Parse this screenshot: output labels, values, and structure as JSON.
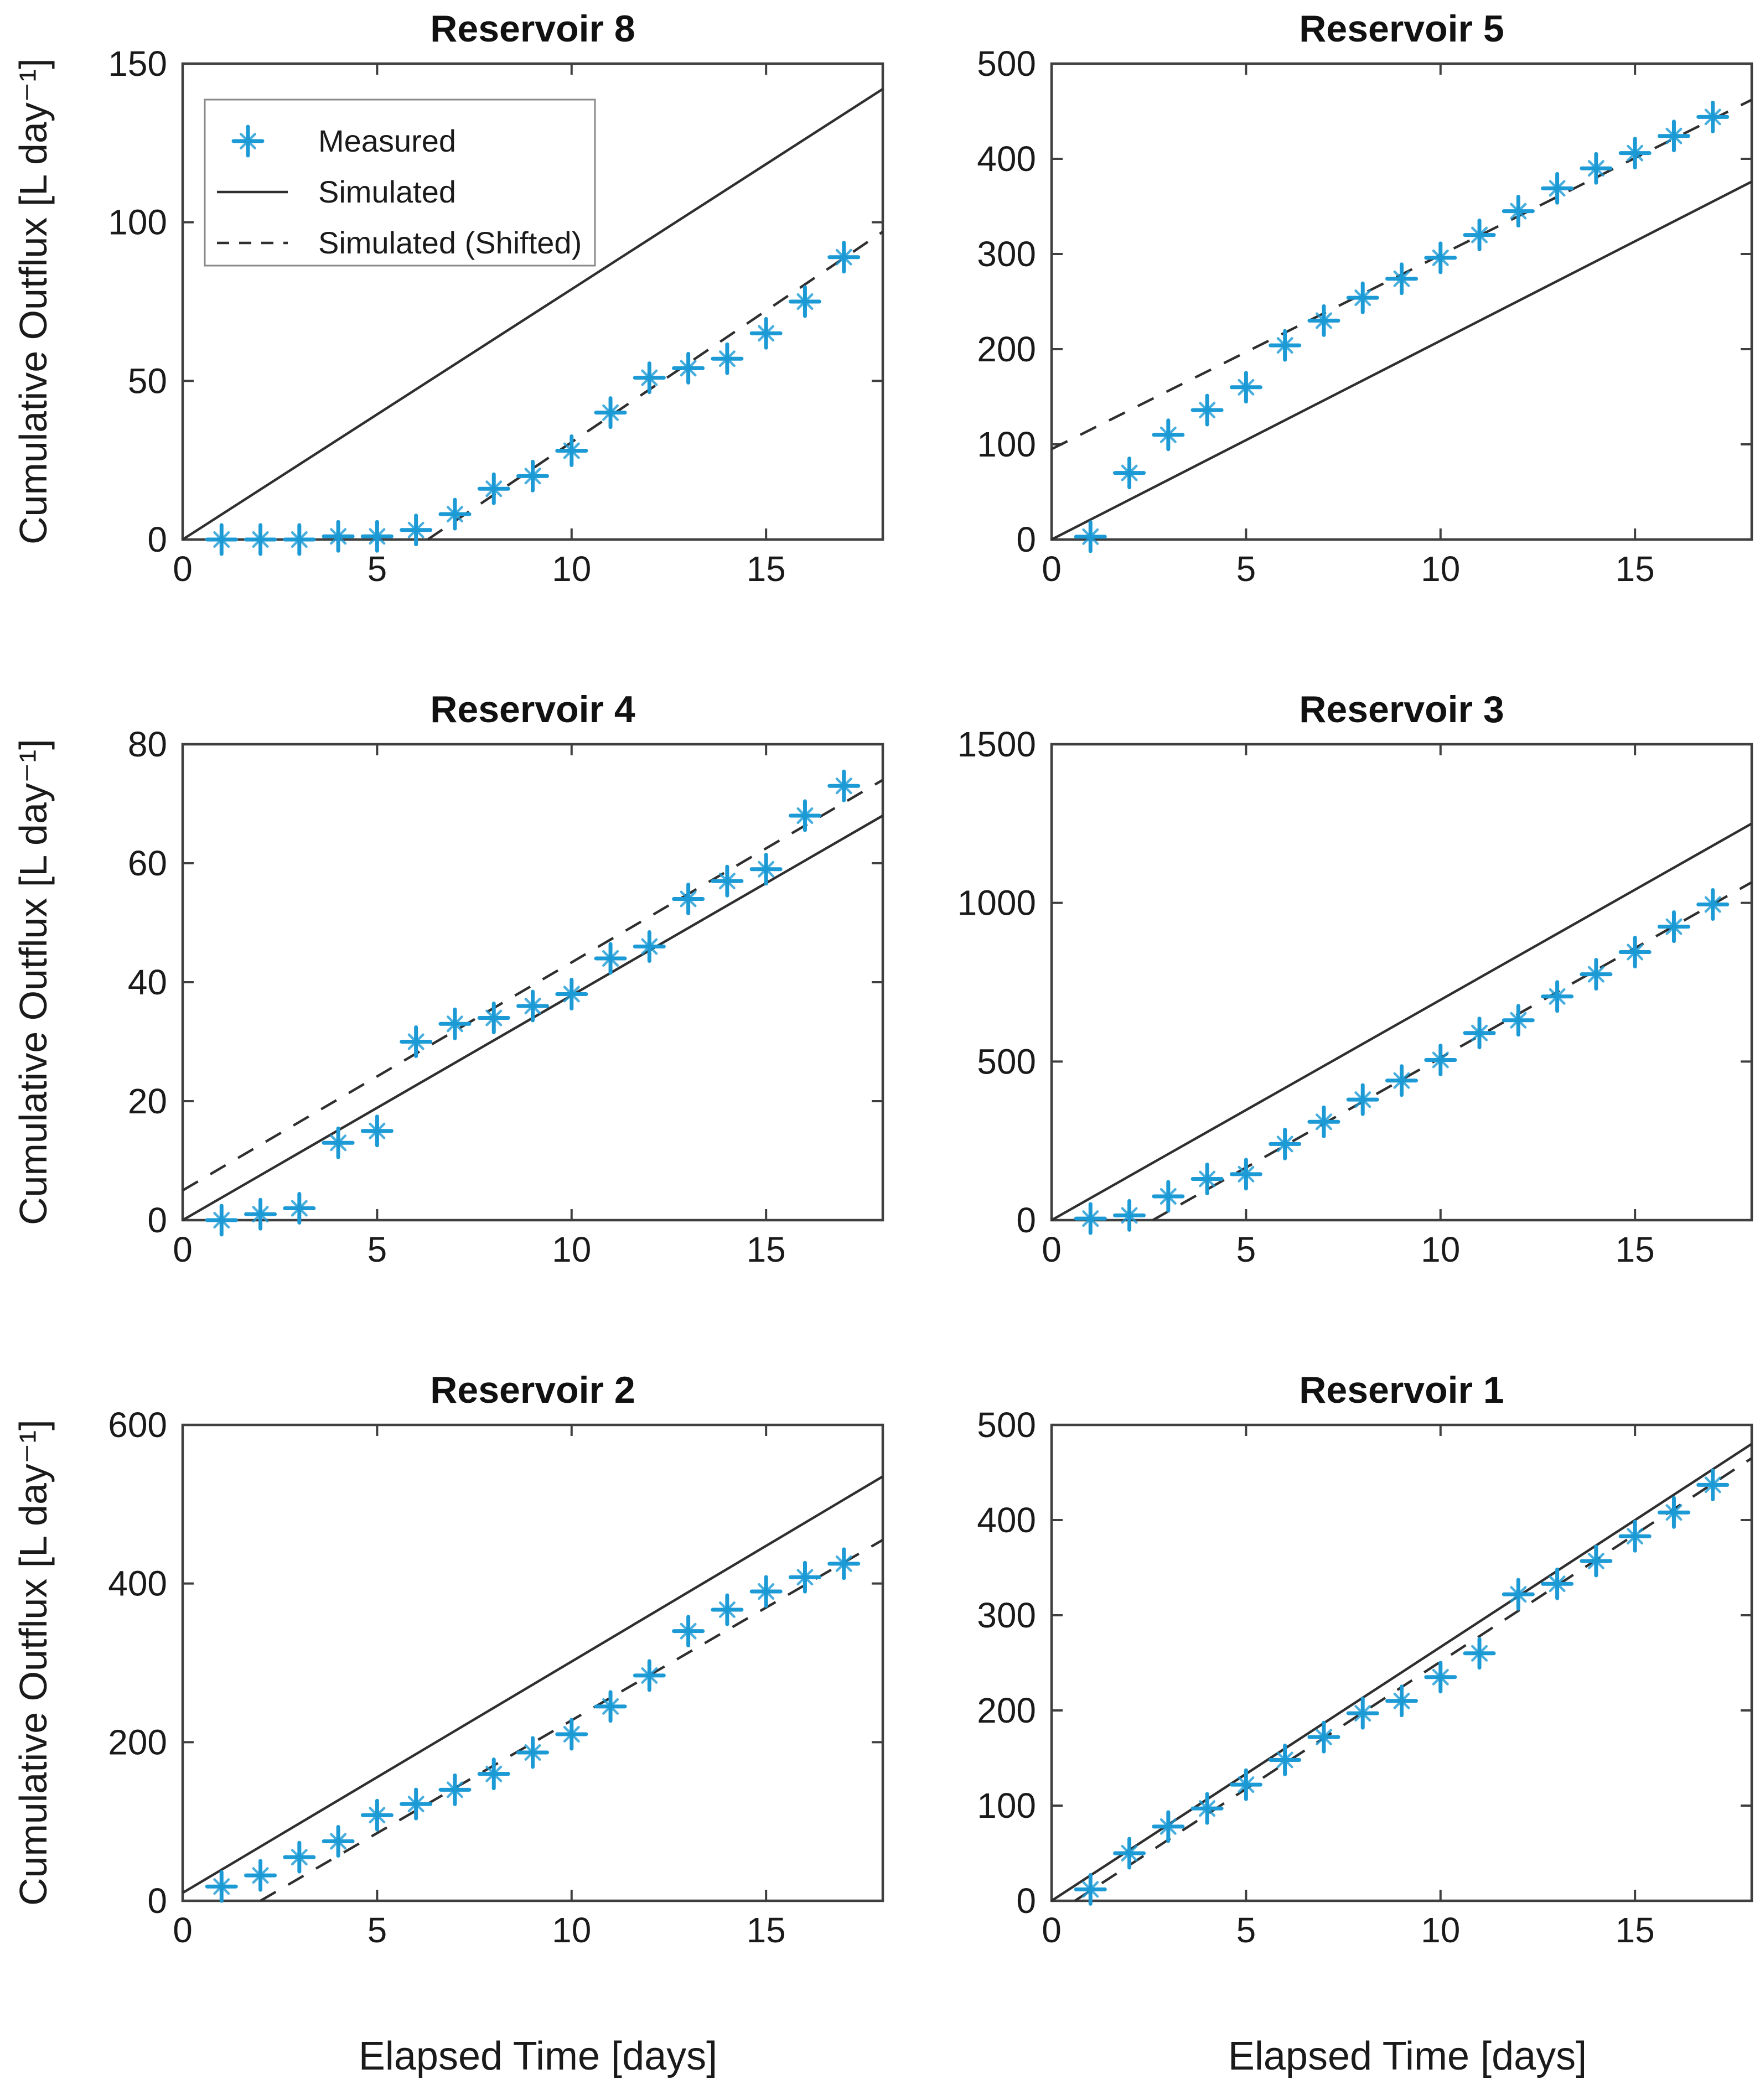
{
  "labels": {
    "x_axis": "Elapsed Time [days]",
    "y_axis": "Cumulative Outflux [L day⁻¹]"
  },
  "legend": {
    "position": "top-left-inside",
    "items": [
      {
        "label": "Measured",
        "symbol": "asterisk-marker"
      },
      {
        "label": "Simulated",
        "symbol": "solid-line"
      },
      {
        "label": "Simulated (Shifted)",
        "symbol": "dashed-line"
      }
    ]
  },
  "colors": {
    "background": "#ffffff",
    "measured_marker": "#1b9ad5",
    "simulated_line": "#2f2f2f",
    "axis": "#3f3f3f",
    "tick_text": "#1a1a1a",
    "legend_border": "#8a8a8a"
  },
  "x_axis": {
    "lim": [
      0,
      18
    ],
    "ticks": [
      0,
      5,
      10,
      15
    ],
    "days": [
      1,
      2,
      3,
      4,
      5,
      6,
      7,
      8,
      9,
      10,
      11,
      12,
      13,
      14,
      15,
      16,
      17
    ]
  },
  "chart_data": [
    {
      "type": "scatter+line",
      "title": "Reservoir 8",
      "ylim": [
        0,
        150
      ],
      "yticks": [
        0,
        50,
        100,
        150
      ],
      "measured": [
        0,
        0,
        0,
        1,
        1,
        3,
        8,
        16,
        20,
        28,
        40,
        51,
        54,
        57,
        65,
        75,
        89
      ],
      "simulated": {
        "x": [
          0,
          18
        ],
        "y": [
          0,
          142
        ]
      },
      "simulated_shifted": {
        "x": [
          6.3,
          18
        ],
        "y": [
          0,
          97
        ]
      },
      "show_legend": true
    },
    {
      "type": "scatter+line",
      "title": "Reservoir 5",
      "ylim": [
        0,
        500
      ],
      "yticks": [
        0,
        100,
        200,
        300,
        400,
        500
      ],
      "measured": [
        3,
        70,
        110,
        136,
        160,
        204,
        230,
        254,
        274,
        296,
        320,
        345,
        369,
        390,
        406,
        424,
        444
      ],
      "simulated": {
        "x": [
          0,
          18
        ],
        "y": [
          0,
          376
        ]
      },
      "simulated_shifted": {
        "x": [
          0,
          18
        ],
        "y": [
          95,
          462
        ]
      },
      "show_legend": false
    },
    {
      "type": "scatter+line",
      "title": "Reservoir 4",
      "ylim": [
        0,
        80
      ],
      "yticks": [
        0,
        20,
        40,
        60,
        80
      ],
      "measured": [
        0,
        1,
        2,
        13,
        15,
        30,
        33,
        34,
        36,
        38,
        44,
        46,
        54,
        57,
        59,
        68,
        73
      ],
      "simulated": {
        "x": [
          0,
          18
        ],
        "y": [
          0,
          68
        ]
      },
      "simulated_shifted": {
        "x": [
          0,
          18
        ],
        "y": [
          5,
          74
        ]
      },
      "show_legend": false
    },
    {
      "type": "scatter+line",
      "title": "Reservoir 3",
      "ylim": [
        0,
        1500
      ],
      "yticks": [
        0,
        500,
        1000,
        1500
      ],
      "measured": [
        5,
        15,
        75,
        130,
        145,
        240,
        310,
        380,
        440,
        505,
        590,
        630,
        705,
        775,
        845,
        925,
        995
      ],
      "simulated": {
        "x": [
          0,
          18
        ],
        "y": [
          0,
          1250
        ]
      },
      "simulated_shifted": {
        "x": [
          2.6,
          18
        ],
        "y": [
          0,
          1065
        ]
      },
      "show_legend": false
    },
    {
      "type": "scatter+line",
      "title": "Reservoir 2",
      "ylim": [
        0,
        600
      ],
      "yticks": [
        0,
        200,
        400,
        600
      ],
      "measured": [
        18,
        32,
        55,
        75,
        108,
        122,
        140,
        160,
        187,
        210,
        245,
        284,
        340,
        367,
        390,
        408,
        425
      ],
      "simulated": {
        "x": [
          0,
          18
        ],
        "y": [
          10,
          535
        ]
      },
      "simulated_shifted": {
        "x": [
          2,
          18
        ],
        "y": [
          0,
          455
        ]
      },
      "show_legend": false
    },
    {
      "type": "scatter+line",
      "title": "Reservoir 1",
      "ylim": [
        0,
        500
      ],
      "yticks": [
        0,
        100,
        200,
        300,
        400,
        500
      ],
      "measured": [
        12,
        50,
        78,
        97,
        122,
        148,
        172,
        197,
        210,
        235,
        260,
        322,
        333,
        357,
        383,
        408,
        437
      ],
      "simulated": {
        "x": [
          0,
          18
        ],
        "y": [
          0,
          480
        ]
      },
      "simulated_shifted": {
        "x": [
          0.6,
          18
        ],
        "y": [
          0,
          465
        ]
      },
      "show_legend": false
    }
  ]
}
